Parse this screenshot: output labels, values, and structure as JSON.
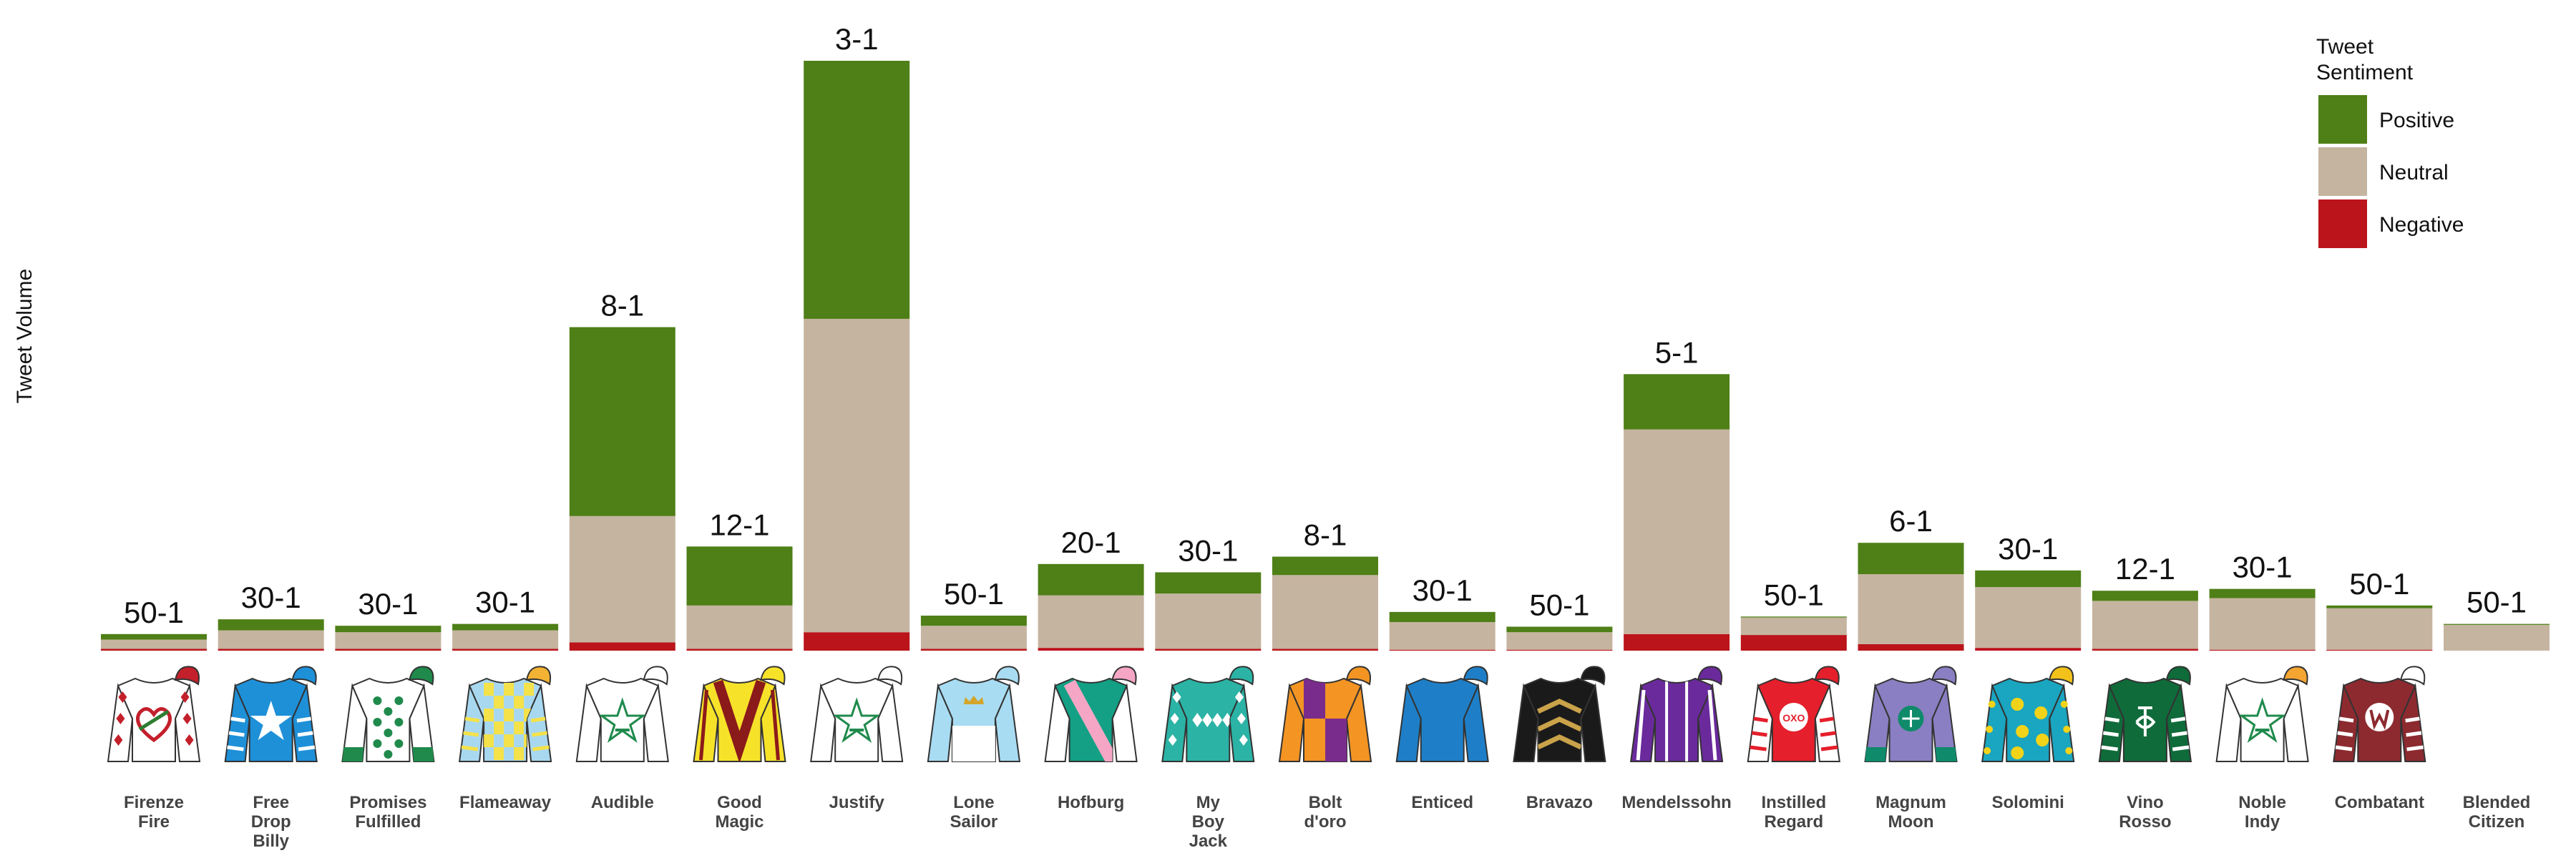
{
  "chart_data": {
    "type": "bar",
    "stacked": true,
    "ylabel": "Tweet Volume",
    "legend": {
      "title_lines": [
        "Tweet",
        "Sentiment"
      ],
      "placement": "top-right",
      "entries": [
        {
          "name": "Positive",
          "color": "#4f7f17"
        },
        {
          "name": "Neutral",
          "color": "#c5b4a0"
        },
        {
          "name": "Negative",
          "color": "#bb141b"
        }
      ]
    },
    "horses": [
      {
        "name": "Firenze Fire",
        "name_lines": [
          "Firenze",
          "Fire"
        ],
        "odds": "50-1",
        "negative": 2,
        "neutral": 10,
        "positive": 6,
        "silks": {
          "body": "#ffffff",
          "sleeve": "#ffffff",
          "cap": "#c3202b",
          "accent": "#2e7d32",
          "pattern": "heart",
          "sleeve_pattern": "diamonds",
          "sleeve_accent": "#c3202b"
        }
      },
      {
        "name": "Free Drop Billy",
        "name_lines": [
          "Free",
          "Drop",
          "Billy"
        ],
        "odds": "30-1",
        "negative": 2,
        "neutral": 20,
        "positive": 12,
        "silks": {
          "body": "#1e90d8",
          "sleeve": "#1e90d8",
          "cap": "#1e90d8",
          "accent": "#ffffff",
          "pattern": "star",
          "sleeve_pattern": "hoops",
          "sleeve_accent": "#ffffff"
        }
      },
      {
        "name": "Promises Fulfilled",
        "name_lines": [
          "Promises",
          "Fulfilled"
        ],
        "odds": "30-1",
        "negative": 2,
        "neutral": 18,
        "positive": 7,
        "silks": {
          "body": "#ffffff",
          "sleeve": "#ffffff",
          "cap": "#1f8a4c",
          "accent": "#1f8a4c",
          "pattern": "dots",
          "sleeve_pattern": "cuff",
          "sleeve_accent": "#1f8a4c"
        }
      },
      {
        "name": "Flameaway",
        "name_lines": [
          "Flameaway"
        ],
        "odds": "30-1",
        "negative": 2,
        "neutral": 20,
        "positive": 7,
        "silks": {
          "body": "#a8d8f0",
          "sleeve": "#a8d8f0",
          "cap": "#f2b233",
          "accent": "#f5e24a",
          "pattern": "checks",
          "sleeve_pattern": "hoops",
          "sleeve_accent": "#f5e24a"
        }
      },
      {
        "name": "Audible",
        "name_lines": [
          "Audible"
        ],
        "odds": "8-1",
        "negative": 9,
        "neutral": 137,
        "positive": 205,
        "silks": {
          "body": "#ffffff",
          "sleeve": "#ffffff",
          "cap": "#ffffff",
          "accent": "#1f8a4c",
          "pattern": "star-outline",
          "sleeve_pattern": "none",
          "sleeve_accent": "#1f8a4c"
        }
      },
      {
        "name": "Good Magic",
        "name_lines": [
          "Good",
          "Magic"
        ],
        "odds": "12-1",
        "negative": 2,
        "neutral": 47,
        "positive": 64,
        "silks": {
          "body": "#f7e22a",
          "sleeve": "#f7e22a",
          "cap": "#f7e22a",
          "accent": "#8b1a1a",
          "pattern": "chevron",
          "sleeve_pattern": "stripe",
          "sleeve_accent": "#8b1a1a"
        }
      },
      {
        "name": "Justify",
        "name_lines": [
          "Justify"
        ],
        "odds": "3-1",
        "negative": 20,
        "neutral": 340,
        "positive": 280,
        "silks": {
          "body": "#ffffff",
          "sleeve": "#ffffff",
          "cap": "#ffffff",
          "accent": "#1f8a4c",
          "pattern": "star-outline",
          "sleeve_pattern": "none",
          "sleeve_accent": "#1f8a4c"
        }
      },
      {
        "name": "Lone Sailor",
        "name_lines": [
          "Lone",
          "Sailor"
        ],
        "odds": "50-1",
        "negative": 2,
        "neutral": 25,
        "positive": 11,
        "silks": {
          "body": "#a8dcf2",
          "sleeve": "#a8dcf2",
          "cap": "#a8dcf2",
          "accent": "#d4a52a",
          "pattern": "crown",
          "sleeve_pattern": "none",
          "sleeve_accent": "#ffffff"
        }
      },
      {
        "name": "Hofburg",
        "name_lines": [
          "Hofburg"
        ],
        "odds": "20-1",
        "negative": 3,
        "neutral": 57,
        "positive": 34,
        "silks": {
          "body": "#13a085",
          "sleeve": "#ffffff",
          "cap": "#f4a6c4",
          "accent": "#f4a6c4",
          "pattern": "sash",
          "sleeve_pattern": "none",
          "sleeve_accent": "#f4a6c4"
        }
      },
      {
        "name": "My Boy Jack",
        "name_lines": [
          "My",
          "Boy",
          "Jack"
        ],
        "odds": "30-1",
        "negative": 2,
        "neutral": 60,
        "positive": 23,
        "silks": {
          "body": "#2bb3a5",
          "sleeve": "#2bb3a5",
          "cap": "#2bb3a5",
          "accent": "#ffffff",
          "pattern": "diamond-band",
          "sleeve_pattern": "diamonds",
          "sleeve_accent": "#ffffff"
        }
      },
      {
        "name": "Bolt d'oro",
        "name_lines": [
          "Bolt",
          "d'oro"
        ],
        "odds": "8-1",
        "negative": 2,
        "neutral": 80,
        "positive": 20,
        "silks": {
          "body": "#f39423",
          "sleeve": "#f39423",
          "cap": "#f39423",
          "accent": "#7a2c8c",
          "pattern": "quarters",
          "sleeve_pattern": "none",
          "sleeve_accent": "#7a2c8c"
        }
      },
      {
        "name": "Enticed",
        "name_lines": [
          "Enticed"
        ],
        "odds": "30-1",
        "negative": 1,
        "neutral": 30,
        "positive": 11,
        "silks": {
          "body": "#1e7fc8",
          "sleeve": "#1e7fc8",
          "cap": "#1e7fc8",
          "accent": "#1e7fc8",
          "pattern": "plain",
          "sleeve_pattern": "none",
          "sleeve_accent": "#1e7fc8"
        }
      },
      {
        "name": "Bravazo",
        "name_lines": [
          "Bravazo"
        ],
        "odds": "50-1",
        "negative": 1,
        "neutral": 19,
        "positive": 6,
        "silks": {
          "body": "#1a1a1a",
          "sleeve": "#1a1a1a",
          "cap": "#1a1a1a",
          "accent": "#c9a24a",
          "pattern": "chevrons",
          "sleeve_pattern": "none",
          "sleeve_accent": "#c9a24a"
        }
      },
      {
        "name": "Mendelssohn",
        "name_lines": [
          "Mendelssohn"
        ],
        "odds": "5-1",
        "negative": 18,
        "neutral": 222,
        "positive": 60,
        "silks": {
          "body": "#6a2a9c",
          "sleeve": "#6a2a9c",
          "cap": "#6a2a9c",
          "accent": "#ffffff",
          "pattern": "braces",
          "sleeve_pattern": "stripe",
          "sleeve_accent": "#ffffff"
        }
      },
      {
        "name": "Instilled Regard",
        "name_lines": [
          "Instilled",
          "Regard"
        ],
        "odds": "50-1",
        "negative": 17,
        "neutral": 19,
        "positive": 1,
        "silks": {
          "body": "#e51f2b",
          "sleeve": "#ffffff",
          "cap": "#e51f2b",
          "accent": "#ffffff",
          "pattern": "oxo",
          "sleeve_pattern": "hoops",
          "sleeve_accent": "#e51f2b"
        }
      },
      {
        "name": "Magnum Moon",
        "name_lines": [
          "Magnum",
          "Moon"
        ],
        "odds": "6-1",
        "negative": 7,
        "neutral": 76,
        "positive": 34,
        "silks": {
          "body": "#8a7fc2",
          "sleeve": "#8a7fc2",
          "cap": "#8a7fc2",
          "accent": "#0f8a6a",
          "pattern": "seal",
          "sleeve_pattern": "cuff",
          "sleeve_accent": "#0f8a6a"
        }
      },
      {
        "name": "Solomini",
        "name_lines": [
          "Solomini"
        ],
        "odds": "30-1",
        "negative": 3,
        "neutral": 66,
        "positive": 18,
        "silks": {
          "body": "#1aa5c0",
          "sleeve": "#1aa5c0",
          "cap": "#f2c21a",
          "accent": "#f2d31a",
          "pattern": "balls",
          "sleeve_pattern": "dots",
          "sleeve_accent": "#f2d31a"
        }
      },
      {
        "name": "Vino Rosso",
        "name_lines": [
          "Vino",
          "Rosso"
        ],
        "odds": "12-1",
        "negative": 2,
        "neutral": 52,
        "positive": 11,
        "silks": {
          "body": "#0f6b3a",
          "sleeve": "#0f6b3a",
          "cap": "#0f6b3a",
          "accent": "#ffffff",
          "pattern": "monogram",
          "sleeve_pattern": "hoops",
          "sleeve_accent": "#ffffff"
        }
      },
      {
        "name": "Noble Indy",
        "name_lines": [
          "Noble",
          "Indy"
        ],
        "odds": "30-1",
        "negative": 1,
        "neutral": 56,
        "positive": 10,
        "silks": {
          "body": "#ffffff",
          "sleeve": "#ffffff",
          "cap": "#f4a532",
          "accent": "#1f8a4c",
          "pattern": "star-outline",
          "sleeve_pattern": "none",
          "sleeve_accent": "#1f8a4c"
        }
      },
      {
        "name": "Combatant",
        "name_lines": [
          "Combatant"
        ],
        "odds": "50-1",
        "negative": 1,
        "neutral": 45,
        "positive": 3,
        "silks": {
          "body": "#8c2a30",
          "sleeve": "#8c2a30",
          "cap": "#ffffff",
          "accent": "#ffffff",
          "pattern": "w-circle",
          "sleeve_pattern": "hoops",
          "sleeve_accent": "#ffffff"
        }
      },
      {
        "name": "Blended Citizen",
        "name_lines": [
          "Blended",
          "Citizen"
        ],
        "odds": "50-1",
        "negative": 0,
        "neutral": 28,
        "positive": 1,
        "silks": null
      }
    ]
  }
}
